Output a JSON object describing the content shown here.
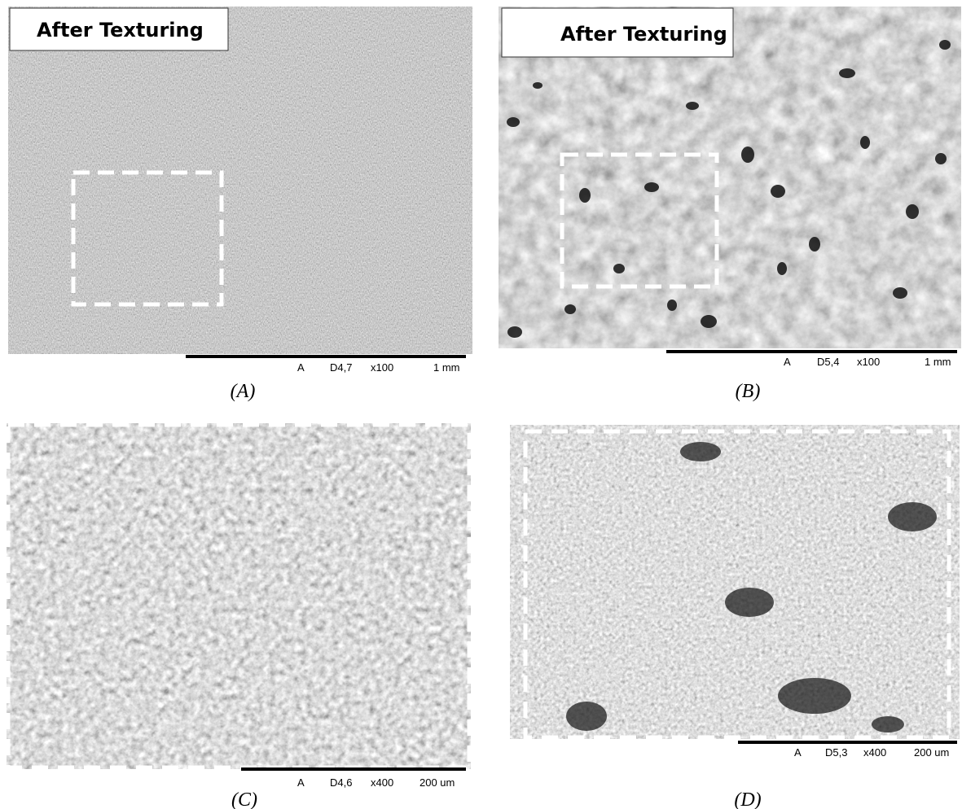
{
  "panels": [
    {
      "banner": "After Texturing",
      "scale": [
        "A",
        "D4,7",
        "x100",
        "1 mm"
      ],
      "caption": "(A)"
    },
    {
      "banner": "After Texturing",
      "scale": [
        "A",
        "D5,4",
        "x100",
        "1 mm"
      ],
      "caption": "(B)"
    },
    {
      "scale": [
        "A",
        "D4,6",
        "x400",
        "200 um"
      ],
      "caption": "(C)"
    },
    {
      "scale": [
        "A",
        "D5,3",
        "x400",
        "200 um"
      ],
      "caption": "(D)"
    }
  ]
}
